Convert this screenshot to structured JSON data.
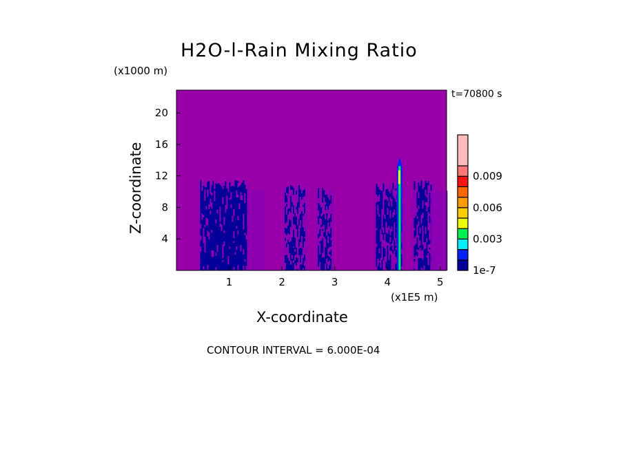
{
  "chart_data": {
    "type": "heatmap",
    "title": "H2O-l-Rain Mixing Ratio",
    "xlabel": "X-coordinate",
    "ylabel": "Z-coordinate",
    "x_unit": "(x1E5 m)",
    "y_unit": "(x1000 m)",
    "time_label": "t=70800 s",
    "xlim": [
      0,
      5.12
    ],
    "ylim": [
      0,
      22.9
    ],
    "xticks": [
      "1",
      "2",
      "3",
      "4",
      "5"
    ],
    "xtick_values": [
      1,
      2,
      3,
      4,
      5
    ],
    "yticks": [
      "4",
      "8",
      "12",
      "16",
      "20"
    ],
    "ytick_values": [
      4,
      8,
      12,
      16,
      20
    ],
    "contour_interval_label": "CONTOUR INTERVAL = 6.000E-04",
    "background_color": "#9900aa",
    "colorbar": {
      "levels_colors": [
        "#000099",
        "#0022ff",
        "#00eeff",
        "#00ee55",
        "#eeff00",
        "#ffcc00",
        "#ff9900",
        "#ff6600",
        "#ff1111",
        "#ff7777",
        "#ffbbbb"
      ],
      "labels": [
        "1e-7",
        "0.003",
        "0.006",
        "0.009"
      ],
      "label_level_index": [
        0,
        3,
        6,
        9
      ]
    },
    "rain_columns": [
      {
        "x0": 0.45,
        "x1": 1.35,
        "top": 11.5,
        "density": 0.85
      },
      {
        "x0": 1.45,
        "x1": 1.62,
        "top": 10.5,
        "density": 0.0
      },
      {
        "x0": 2.05,
        "x1": 2.45,
        "top": 11.0,
        "density": 0.5
      },
      {
        "x0": 2.68,
        "x1": 2.95,
        "top": 10.5,
        "density": 0.55
      },
      {
        "x0": 3.78,
        "x1": 4.28,
        "top": 11.2,
        "density": 0.6
      },
      {
        "x0": 4.5,
        "x1": 4.85,
        "top": 11.5,
        "density": 0.6
      },
      {
        "x0": 4.85,
        "x1": 5.1,
        "top": 10.5,
        "density": 0.0
      }
    ],
    "core": {
      "x": 4.23,
      "top": 14.3,
      "max_level_index": 4
    }
  }
}
